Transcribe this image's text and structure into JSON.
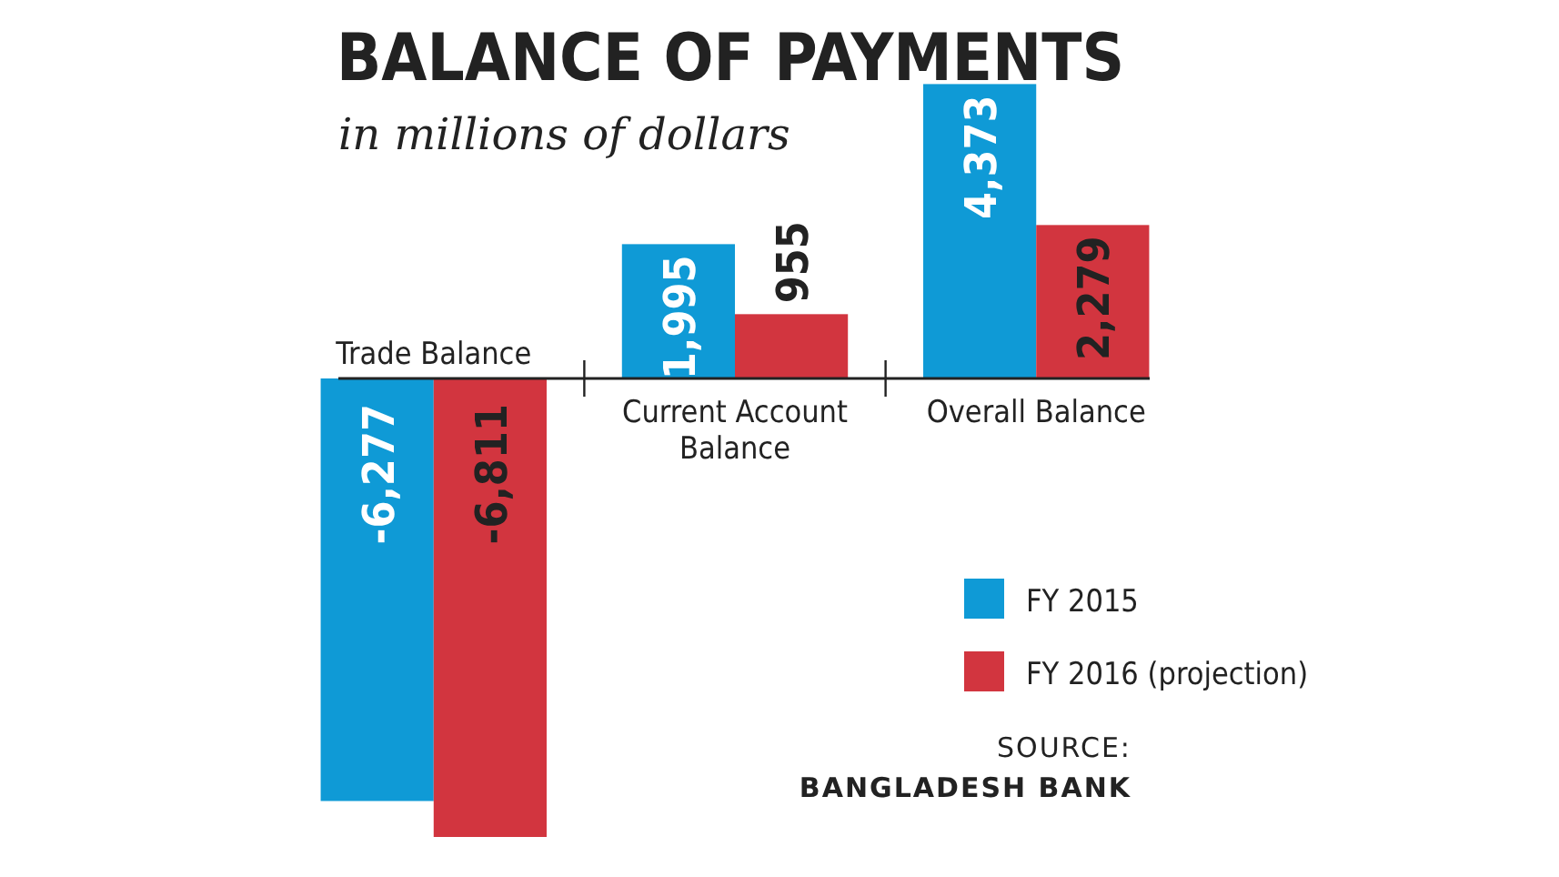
{
  "chart_data": {
    "type": "bar",
    "title": "BALANCE OF PAYMENTS",
    "subtitle": "in millions of dollars",
    "categories": [
      "Trade Balance",
      "Current Account Balance",
      "Overall Balance"
    ],
    "series": [
      {
        "name": "FY 2015",
        "color": "#0f9ad6",
        "values": [
          -6277,
          1995,
          4373
        ],
        "value_labels": [
          "-6,277",
          "1,995",
          "4,373"
        ]
      },
      {
        "name": "FY 2016 (projection)",
        "color": "#d2353f",
        "values": [
          -6811,
          955,
          2279
        ],
        "value_labels": [
          "-6,811",
          "955",
          "2,279"
        ]
      }
    ],
    "legend": "bottom right",
    "annotations": [
      "SOURCE:",
      "BANGLADESH BANK"
    ]
  }
}
